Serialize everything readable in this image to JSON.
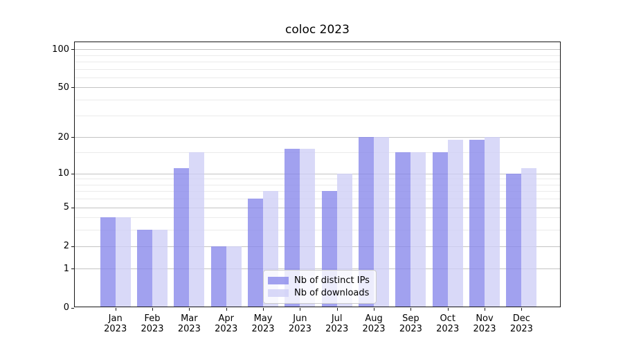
{
  "chart_data": {
    "type": "bar",
    "title": "coloc 2023",
    "categories": [
      "Jan",
      "Feb",
      "Mar",
      "Apr",
      "May",
      "Jun",
      "Jul",
      "Aug",
      "Sep",
      "Oct",
      "Nov",
      "Dec"
    ],
    "x_year": "2023",
    "series": [
      {
        "name": "Nb of distinct IPs",
        "color": "rgba(134,134,235,0.78)",
        "values": [
          4,
          3,
          11,
          2,
          6,
          16,
          7,
          20,
          15,
          15,
          19,
          10
        ]
      },
      {
        "name": "Nb of downloads",
        "color": "rgba(206,206,246,0.78)",
        "values": [
          4,
          3,
          15,
          2,
          7,
          16,
          10,
          20,
          15,
          19,
          20,
          11
        ]
      }
    ],
    "yscale": "log1p",
    "ylim": [
      0,
      115
    ],
    "y_major_ticks": [
      0,
      1,
      2,
      5,
      10,
      20,
      50,
      100
    ],
    "y_minor_ticks": [
      3,
      4,
      6,
      7,
      8,
      9,
      15,
      30,
      40,
      60,
      70,
      80,
      90
    ],
    "grid": "horizontal-major-and-minor",
    "legend_position": "lower-center"
  },
  "colors": {
    "background": "#ffffff",
    "grid_major": "#c3c3c3",
    "grid_minor": "#ebebeb",
    "spine": "#161616",
    "text": "#000000",
    "legend_border": "#cccccc",
    "legend_bg": "rgba(255,255,255,0.8)"
  }
}
